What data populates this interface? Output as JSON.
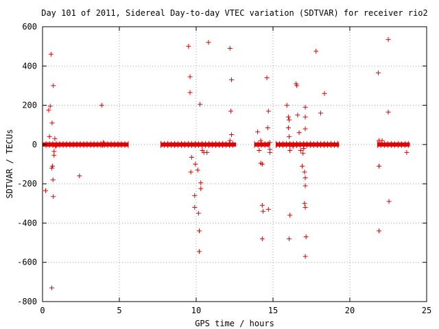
{
  "chart_data": {
    "type": "scatter",
    "title": "Day 101 of 2011, Sidereal Day-to-day VTEC variation (SDTVAR) for receiver rio2",
    "xlabel": "GPS time / hours",
    "ylabel": "SDTVAR / TECUs",
    "xlim": [
      0,
      25
    ],
    "ylim": [
      -800,
      600
    ],
    "xticks": [
      "0",
      "5",
      "10",
      "15",
      "20",
      "25"
    ],
    "yticks": [
      "600",
      "400",
      "200",
      "0",
      "-200",
      "-400",
      "-600",
      "-800"
    ],
    "grid": true,
    "marker": "plus",
    "color": "#e00000",
    "dense_bands": [
      {
        "x_start": 0.0,
        "x_end": 5.6
      },
      {
        "x_start": 7.7,
        "x_end": 12.6
      },
      {
        "x_start": 13.8,
        "x_end": 14.8
      },
      {
        "x_start": 15.2,
        "x_end": 19.3
      },
      {
        "x_start": 21.8,
        "x_end": 23.9
      }
    ],
    "points": [
      [
        0.2,
        -235
      ],
      [
        0.3,
        0
      ],
      [
        0.4,
        175
      ],
      [
        0.45,
        40
      ],
      [
        0.5,
        195
      ],
      [
        0.55,
        460
      ],
      [
        0.6,
        -730
      ],
      [
        0.6,
        -120
      ],
      [
        0.62,
        110
      ],
      [
        0.65,
        -110
      ],
      [
        0.68,
        -180
      ],
      [
        0.7,
        300
      ],
      [
        0.7,
        -265
      ],
      [
        0.75,
        -55
      ],
      [
        0.75,
        -35
      ],
      [
        0.8,
        30
      ],
      [
        0.85,
        -10
      ],
      [
        2.4,
        -160
      ],
      [
        3.85,
        200
      ],
      [
        3.9,
        -5
      ],
      [
        3.95,
        10
      ],
      [
        9.5,
        500
      ],
      [
        9.6,
        345
      ],
      [
        9.6,
        265
      ],
      [
        9.7,
        -65
      ],
      [
        9.65,
        -140
      ],
      [
        9.9,
        -260
      ],
      [
        9.9,
        -320
      ],
      [
        9.95,
        -100
      ],
      [
        10.1,
        -130
      ],
      [
        10.15,
        -350
      ],
      [
        10.2,
        -440
      ],
      [
        10.2,
        -545
      ],
      [
        10.25,
        205
      ],
      [
        10.3,
        -195
      ],
      [
        10.3,
        -225
      ],
      [
        10.4,
        -30
      ],
      [
        10.5,
        -40
      ],
      [
        10.7,
        -40
      ],
      [
        10.8,
        520
      ],
      [
        12.2,
        490
      ],
      [
        12.3,
        330
      ],
      [
        12.25,
        170
      ],
      [
        12.3,
        50
      ],
      [
        12.2,
        20
      ],
      [
        14.0,
        65
      ],
      [
        14.1,
        -30
      ],
      [
        14.2,
        20
      ],
      [
        14.2,
        -95
      ],
      [
        14.3,
        -100
      ],
      [
        14.3,
        -310
      ],
      [
        14.35,
        -340
      ],
      [
        14.3,
        -480
      ],
      [
        14.6,
        340
      ],
      [
        14.65,
        85
      ],
      [
        14.7,
        170
      ],
      [
        14.7,
        -330
      ],
      [
        14.8,
        -40
      ],
      [
        14.8,
        10
      ],
      [
        14.8,
        -25
      ],
      [
        15.9,
        200
      ],
      [
        16.0,
        140
      ],
      [
        16.0,
        85
      ],
      [
        16.05,
        125
      ],
      [
        16.05,
        40
      ],
      [
        16.1,
        -30
      ],
      [
        16.1,
        -360
      ],
      [
        16.05,
        -480
      ],
      [
        16.3,
        -10
      ],
      [
        16.5,
        310
      ],
      [
        16.55,
        300
      ],
      [
        16.6,
        150
      ],
      [
        16.7,
        60
      ],
      [
        16.8,
        -30
      ],
      [
        16.9,
        -110
      ],
      [
        16.95,
        -45
      ],
      [
        17.0,
        -20
      ],
      [
        17.1,
        190
      ],
      [
        17.1,
        140
      ],
      [
        17.1,
        80
      ],
      [
        17.05,
        -140
      ],
      [
        17.1,
        -170
      ],
      [
        17.1,
        -210
      ],
      [
        17.05,
        -300
      ],
      [
        17.1,
        -320
      ],
      [
        17.15,
        -470
      ],
      [
        17.1,
        -570
      ],
      [
        17.8,
        475
      ],
      [
        18.1,
        160
      ],
      [
        18.35,
        260
      ],
      [
        21.85,
        365
      ],
      [
        21.9,
        -440
      ],
      [
        21.9,
        -110
      ],
      [
        21.9,
        20
      ],
      [
        22.1,
        20
      ],
      [
        22.5,
        535
      ],
      [
        22.5,
        165
      ],
      [
        22.55,
        -290
      ],
      [
        23.7,
        -40
      ]
    ]
  }
}
